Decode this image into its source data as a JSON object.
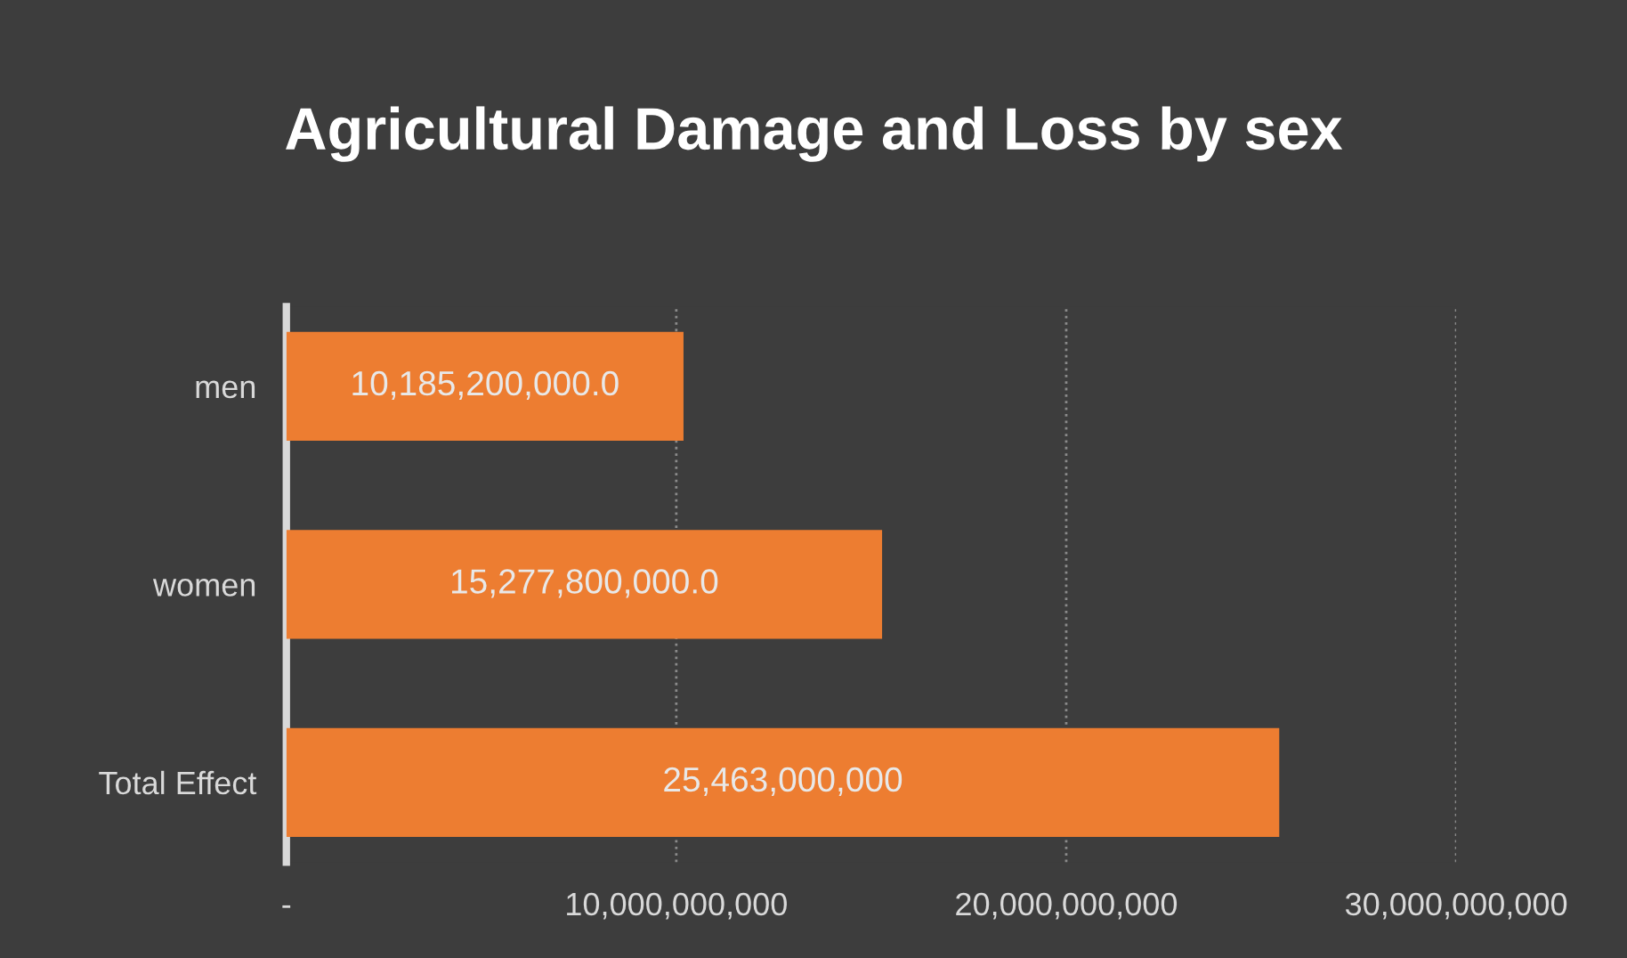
{
  "chart_data": {
    "type": "bar",
    "orientation": "horizontal",
    "title": "Agricultural Damage and Loss by sex",
    "categories": [
      "men",
      "women",
      "Total Effect"
    ],
    "values": [
      10185200000.0,
      15277800000.0,
      25463000000
    ],
    "value_labels": [
      "10,185,200,000.0",
      "15,277,800,000.0",
      "25,463,000,000"
    ],
    "color": "#ed7d31",
    "xlim": [
      0,
      30000000000
    ],
    "xticks": [
      {
        "value": 0,
        "label": "-"
      },
      {
        "value": 10000000000,
        "label": "10,000,000,000"
      },
      {
        "value": 20000000000,
        "label": "20,000,000,000"
      },
      {
        "value": 30000000000,
        "label": "30,000,000,000"
      }
    ],
    "grid": "x",
    "legend": false
  }
}
